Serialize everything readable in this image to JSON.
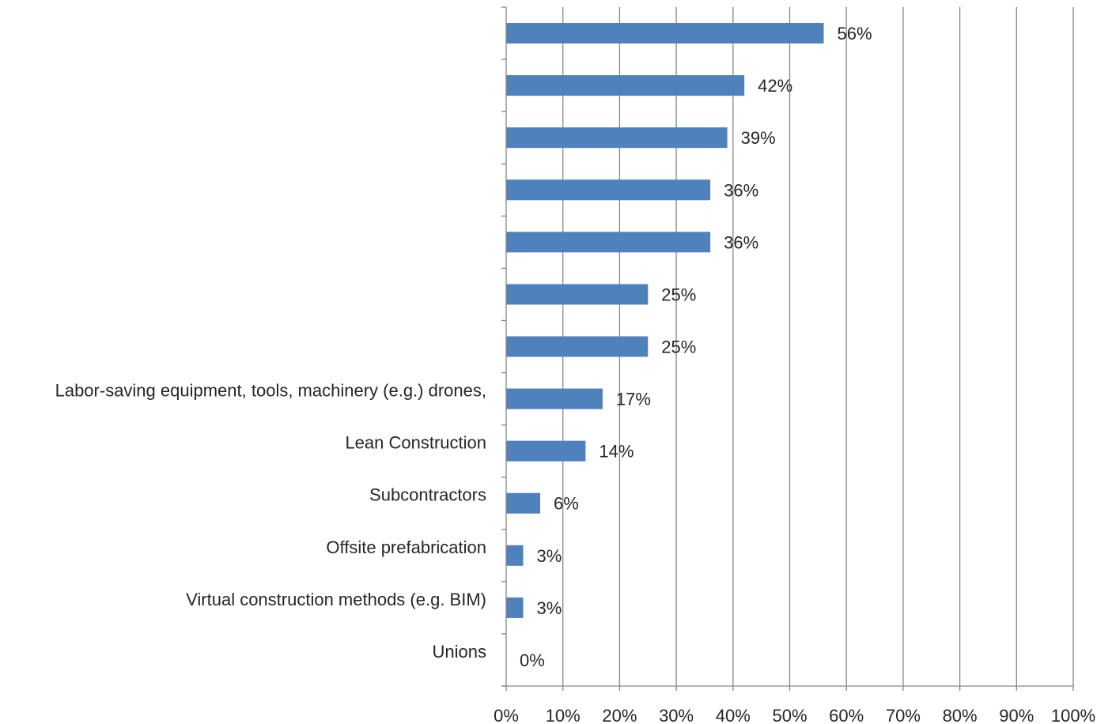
{
  "chart_data": {
    "type": "bar",
    "orientation": "horizontal",
    "categories": [
      "",
      "",
      "",
      "",
      "",
      "",
      "",
      "Labor-saving equipment, tools, machinery (e.g.) drones,",
      "Lean Construction",
      "Subcontractors",
      "Offsite prefabrication",
      "Virtual construction methods (e.g. BIM)",
      "Unions"
    ],
    "values": [
      56,
      42,
      39,
      36,
      36,
      25,
      25,
      17,
      14,
      6,
      3,
      3,
      0
    ],
    "value_labels": [
      "56%",
      "42%",
      "39%",
      "36%",
      "36%",
      "25%",
      "25%",
      "17%",
      "14%",
      "6%",
      "3%",
      "3%",
      "0%"
    ],
    "xlim": [
      0,
      100
    ],
    "x_ticks": [
      "0%",
      "10%",
      "20%",
      "30%",
      "40%",
      "50%",
      "60%",
      "70%",
      "80%",
      "90%",
      "100%"
    ],
    "grid": "vertical",
    "legend": "none",
    "bar_color": "#4f81bd",
    "grid_color": "#868686",
    "text_color": "#262626"
  }
}
